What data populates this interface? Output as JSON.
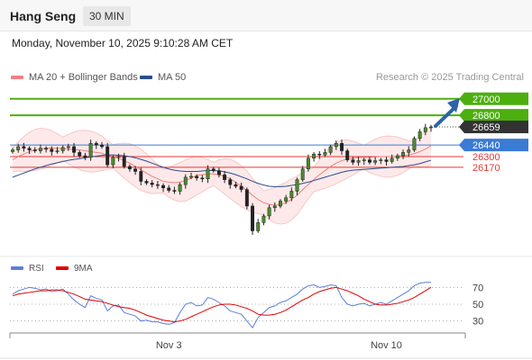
{
  "header": {
    "title": "Hang Seng",
    "timeframe": "30 MIN"
  },
  "datetime": "Monday, November 10, 2025 9:10:28 AM CET",
  "legend": {
    "ma20_label": "MA 20 + Bollinger Bands",
    "ma50_label": "MA 50",
    "copyright": "Research © 2025 Trading Central",
    "colors": {
      "ma20": "#f08080",
      "ma50": "#2a4d8f"
    }
  },
  "rsi_legend": {
    "rsi_label": "RSI",
    "ma9_label": "9MA",
    "colors": {
      "rsi": "#5b7fd6",
      "ma9": "#e00000"
    }
  },
  "chart_data": [
    {
      "type": "line",
      "panel": "price",
      "ylim": [
        25100,
        27150
      ],
      "x_ticks": [
        "Nov 3",
        "Nov 10"
      ],
      "levels": [
        {
          "label": "27000",
          "value": 27000,
          "color": "#4caf0f",
          "kind": "resistance"
        },
        {
          "label": "26800",
          "value": 26800,
          "color": "#4caf0f",
          "kind": "resistance"
        },
        {
          "label": "26659",
          "value": 26659,
          "color": "#333333",
          "kind": "last-price"
        },
        {
          "label": "26440",
          "value": 26440,
          "color": "#3a7bd5",
          "kind": "pivot"
        },
        {
          "label": "26300",
          "value": 26300,
          "color": "#e53935",
          "kind": "support"
        },
        {
          "label": "26170",
          "value": 26170,
          "color": "#e53935",
          "kind": "support"
        }
      ],
      "close": [
        26380,
        26420,
        26400,
        26380,
        26370,
        26400,
        26390,
        26360,
        26370,
        26410,
        26420,
        26350,
        26310,
        26290,
        26460,
        26440,
        26420,
        26200,
        26290,
        26300,
        26180,
        26150,
        26120,
        26000,
        25980,
        25960,
        25950,
        25920,
        25890,
        25880,
        25960,
        26050,
        26060,
        26040,
        26030,
        26150,
        26130,
        26080,
        26020,
        25960,
        25940,
        25900,
        25700,
        25400,
        25500,
        25580,
        25680,
        25700,
        25760,
        25800,
        25880,
        26020,
        26150,
        26280,
        26330,
        26320,
        26350,
        26420,
        26460,
        26370,
        26260,
        26230,
        26250,
        26260,
        26230,
        26250,
        26260,
        26240,
        26280,
        26310,
        26350,
        26380,
        26520,
        26600,
        26650,
        26659
      ],
      "ma20": [
        26260,
        26300,
        26330,
        26360,
        26380,
        26395,
        26400,
        26405,
        26400,
        26395,
        26390,
        26385,
        26380,
        26370,
        26360,
        26350,
        26340,
        26320,
        26300,
        26280,
        26250,
        26220,
        26180,
        26140,
        26100,
        26060,
        26030,
        26000,
        25990,
        25985,
        25990,
        26010,
        26040,
        26070,
        26080,
        26090,
        26090,
        26080,
        26060,
        26030,
        25990,
        25940,
        25890,
        25830,
        25780,
        25740,
        25720,
        25710,
        25720,
        25740,
        25780,
        25830,
        25900,
        25960,
        26020,
        26080,
        26130,
        26180,
        26220,
        26250,
        26270,
        26280,
        26290,
        26290,
        26290,
        26295,
        26300,
        26300,
        26300,
        26305,
        26310,
        26320,
        26335,
        26360,
        26390,
        26430
      ],
      "ma50": [
        26050,
        26075,
        26100,
        26125,
        26150,
        26170,
        26190,
        26210,
        26225,
        26240,
        26255,
        26265,
        26275,
        26285,
        26295,
        26305,
        26315,
        26320,
        26320,
        26315,
        26310,
        26300,
        26285,
        26265,
        26245,
        26220,
        26195,
        26170,
        26150,
        26135,
        26125,
        26120,
        26120,
        26120,
        26125,
        26130,
        26130,
        26125,
        26115,
        26100,
        26080,
        26055,
        26030,
        26000,
        25975,
        25955,
        25940,
        25935,
        25935,
        25940,
        25950,
        25960,
        25975,
        25990,
        26010,
        26030,
        26050,
        26070,
        26090,
        26110,
        26125,
        26135,
        26140,
        26145,
        26150,
        26155,
        26160,
        26165,
        26170,
        26175,
        26180,
        26190,
        26200,
        26215,
        26235,
        26255
      ]
    },
    {
      "type": "line",
      "panel": "rsi",
      "ylim": [
        20,
        80
      ],
      "y_ticks": [
        70,
        50,
        30
      ],
      "rsi": [
        62,
        66,
        68,
        70,
        69,
        67,
        68,
        65,
        66,
        68,
        62,
        55,
        50,
        46,
        60,
        57,
        55,
        42,
        48,
        49,
        40,
        38,
        36,
        30,
        31,
        29,
        29,
        27,
        26,
        28,
        40,
        50,
        52,
        48,
        49,
        58,
        56,
        52,
        48,
        42,
        40,
        38,
        30,
        22,
        34,
        40,
        46,
        48,
        52,
        54,
        58,
        62,
        68,
        72,
        73,
        70,
        71,
        73,
        72,
        58,
        50,
        48,
        50,
        51,
        48,
        50,
        52,
        50,
        54,
        58,
        62,
        66,
        72,
        75,
        76,
        76
      ],
      "ma9": [
        60,
        62,
        63,
        64,
        65,
        66,
        66,
        67,
        67,
        66,
        64,
        62,
        59,
        56,
        55,
        54,
        53,
        51,
        49,
        47,
        46,
        45,
        43,
        40,
        37,
        35,
        33,
        31,
        30,
        29,
        30,
        32,
        35,
        38,
        41,
        44,
        47,
        49,
        50,
        50,
        49,
        47,
        45,
        42,
        38,
        37,
        37,
        38,
        40,
        43,
        47,
        51,
        55,
        58,
        62,
        65,
        67,
        69,
        70,
        68,
        66,
        63,
        60,
        56,
        53,
        50,
        49,
        49,
        50,
        51,
        53,
        55,
        58,
        62,
        66,
        70
      ]
    }
  ]
}
